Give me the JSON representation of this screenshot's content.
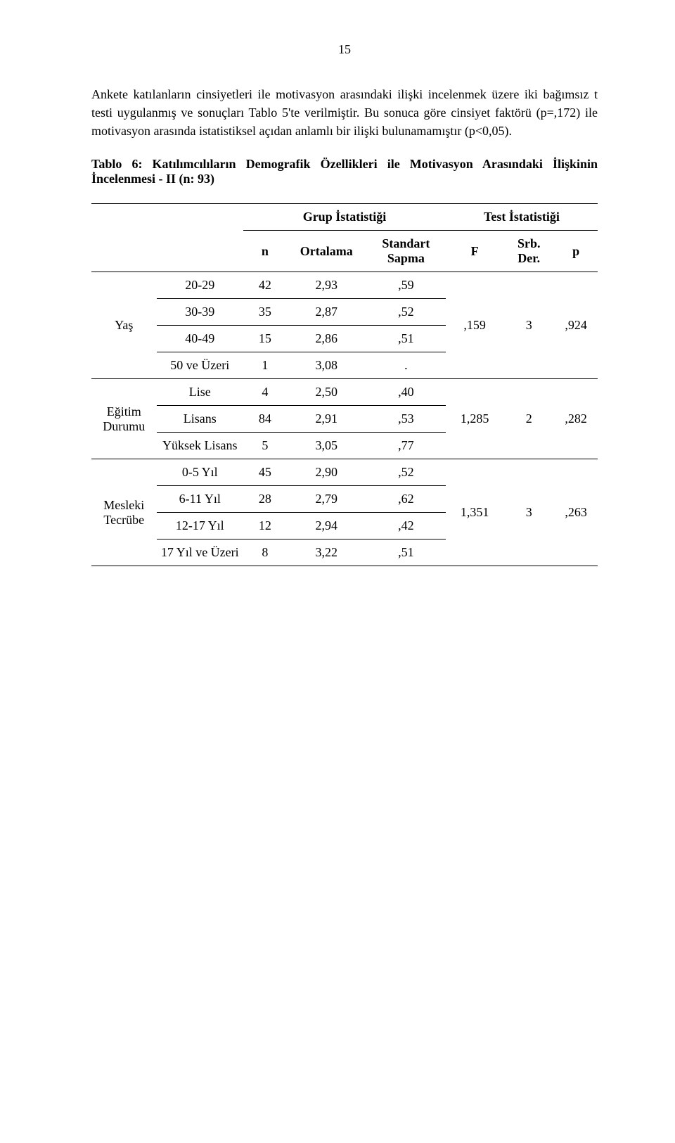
{
  "page_number": "15",
  "paragraph_1": "Ankete katılanların cinsiyetleri ile motivasyon arasındaki ilişki incelenmek üzere iki bağımsız t testi uygulanmış ve sonuçları Tablo 5'te verilmiştir. Bu sonuca göre cinsiyet faktörü (p=,172) ile motivasyon arasında istatistiksel açıdan anlamlı bir ilişki bulunamamıştır (p<0,05).",
  "table_title": "Tablo 6:  Katılımcılıların Demografik Özellikleri ile Motivasyon Arasındaki İlişkinin İncelenmesi - II (n: 93)",
  "headers": {
    "group_stats": "Grup İstatistiği",
    "test_stats": "Test İstatistiği",
    "n": "n",
    "mean": "Ortalama",
    "std": "Standart Sapma",
    "F": "F",
    "srb": "Srb. Der.",
    "p": "p"
  },
  "sections": {
    "age": {
      "label": "Yaş",
      "rows": [
        {
          "label": "20-29",
          "n": "42",
          "mean": "2,93",
          "std": ",59"
        },
        {
          "label": "30-39",
          "n": "35",
          "mean": "2,87",
          "std": ",52"
        },
        {
          "label": "40-49",
          "n": "15",
          "mean": "2,86",
          "std": ",51"
        },
        {
          "label": "50 ve Üzeri",
          "n": "1",
          "mean": "3,08",
          "std": "."
        }
      ],
      "F": ",159",
      "srb": "3",
      "p": ",924"
    },
    "edu": {
      "label": "Eğitim Durumu",
      "rows": [
        {
          "label": "Lise",
          "n": "4",
          "mean": "2,50",
          "std": ",40"
        },
        {
          "label": "Lisans",
          "n": "84",
          "mean": "2,91",
          "std": ",53"
        },
        {
          "label": "Yüksek Lisans",
          "n": "5",
          "mean": "3,05",
          "std": ",77"
        }
      ],
      "F": "1,285",
      "srb": "2",
      "p": ",282"
    },
    "exp": {
      "label": "Mesleki Tecrübe",
      "rows": [
        {
          "label": "0-5 Yıl",
          "n": "45",
          "mean": "2,90",
          "std": ",52"
        },
        {
          "label": "6-11 Yıl",
          "n": "28",
          "mean": "2,79",
          "std": ",62"
        },
        {
          "label": "12-17 Yıl",
          "n": "12",
          "mean": "2,94",
          "std": ",42"
        },
        {
          "label": "17 Yıl ve Üzeri",
          "n": "8",
          "mean": "3,22",
          "std": ",51"
        }
      ],
      "F": "1,351",
      "srb": "3",
      "p": ",263"
    }
  }
}
